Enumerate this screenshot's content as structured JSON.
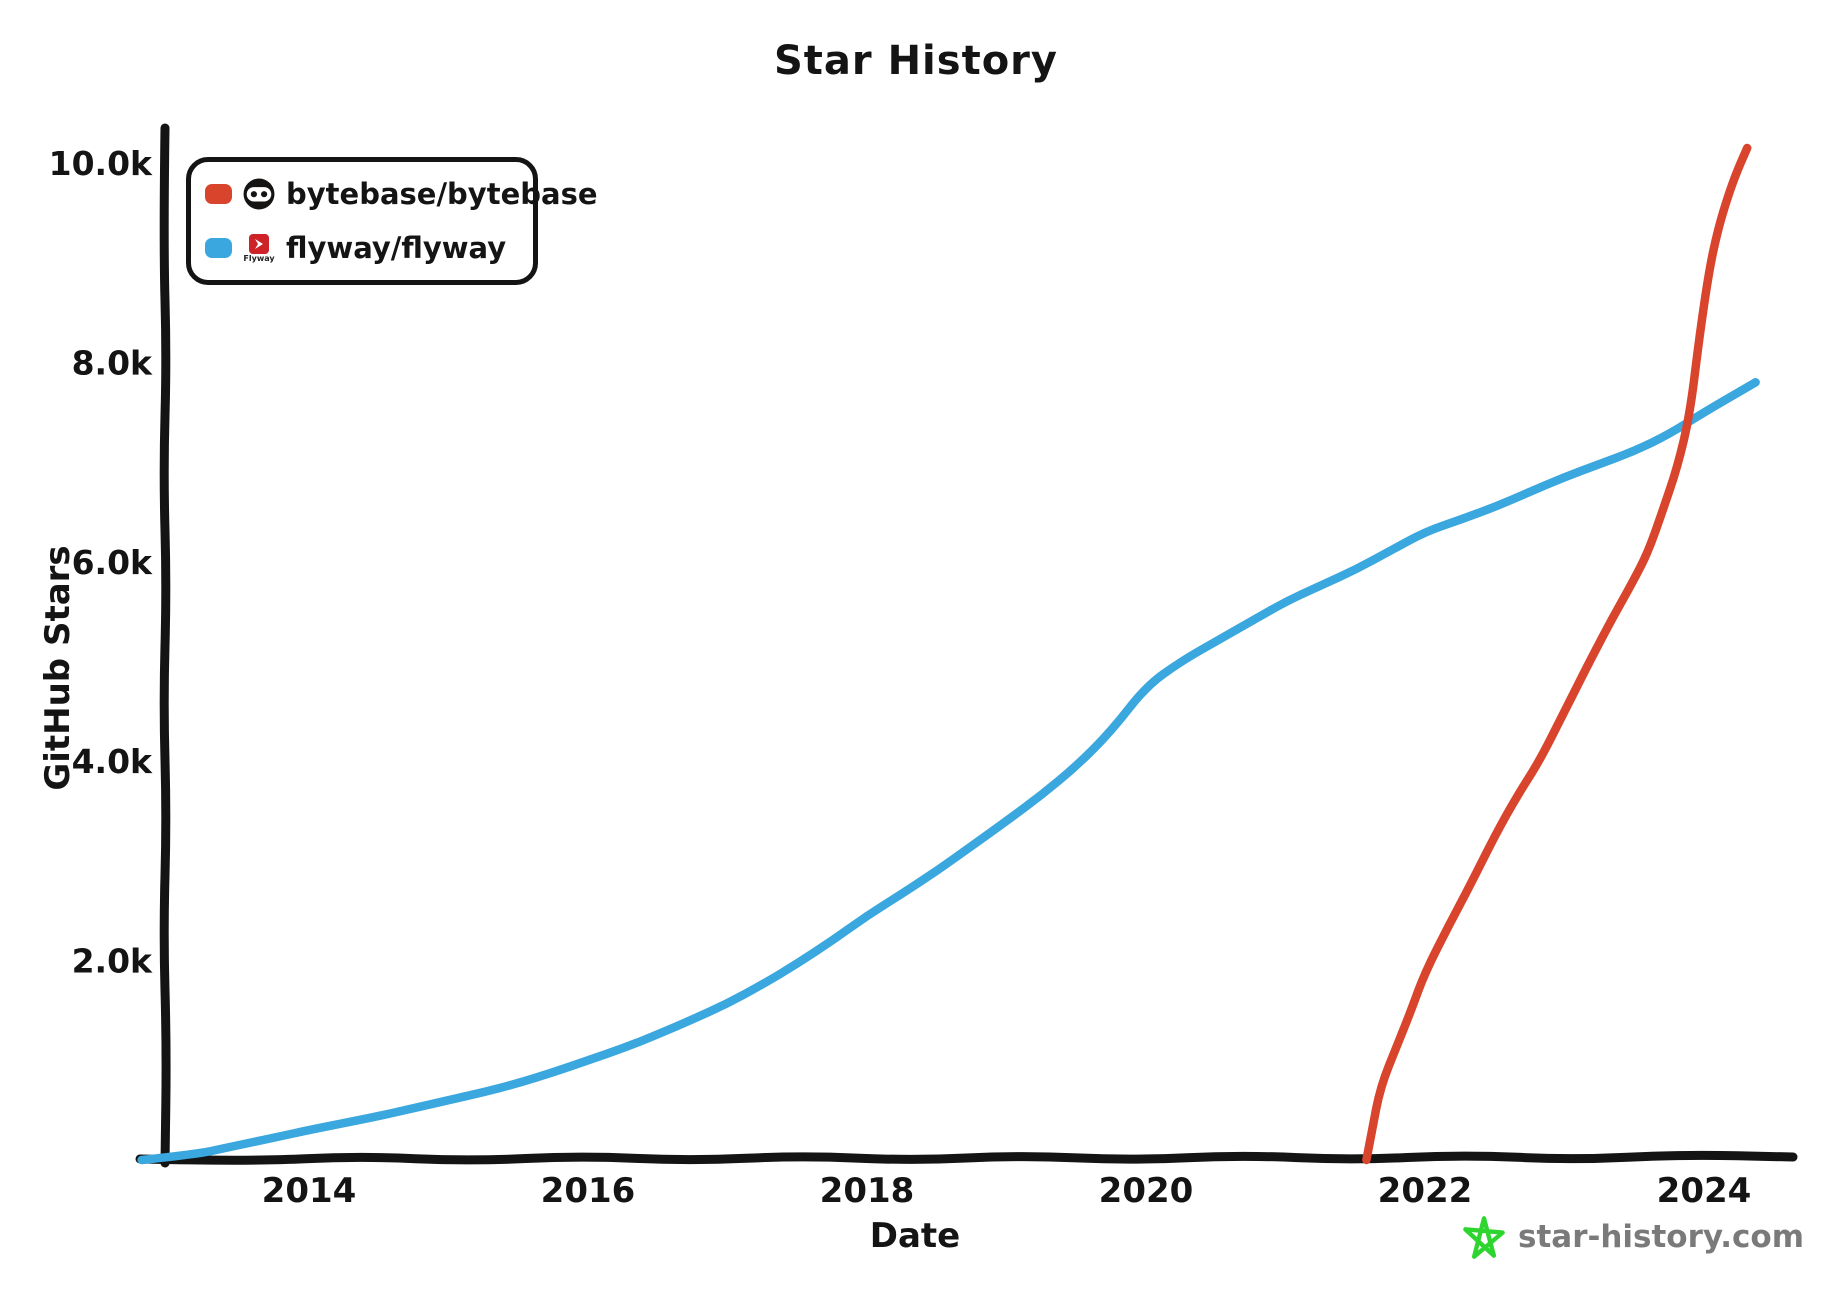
{
  "chart_data": {
    "type": "line",
    "title": "Star History",
    "xlabel": "Date",
    "ylabel": "GitHub Stars",
    "x_ticks": [
      2014,
      2016,
      2018,
      2020,
      2022,
      2024
    ],
    "y_ticks": [
      {
        "value": 2000,
        "label": "2.0k"
      },
      {
        "value": 4000,
        "label": "4.0k"
      },
      {
        "value": 6000,
        "label": "6.0k"
      },
      {
        "value": 8000,
        "label": "8.0k"
      },
      {
        "value": 10000,
        "label": "10.0k"
      }
    ],
    "xlim": [
      2012.8,
      2024.5
    ],
    "ylim": [
      0,
      10000
    ],
    "grid": false,
    "legend_position": "top-left",
    "series": [
      {
        "name": "bytebase/bytebase",
        "color": "#d9452c",
        "icon": "bytebase-logo-icon",
        "x": [
          2021.58,
          2021.62,
          2021.68,
          2021.8,
          2021.9,
          2022.0,
          2022.17,
          2022.34,
          2022.5,
          2022.66,
          2022.82,
          2023.0,
          2023.18,
          2023.33,
          2023.49,
          2023.6,
          2023.7,
          2023.81,
          2023.9,
          2023.97,
          2024.04,
          2024.1,
          2024.17,
          2024.24,
          2024.31
        ],
        "y": [
          0,
          300,
          730,
          1150,
          1500,
          1880,
          2350,
          2800,
          3250,
          3650,
          4000,
          4500,
          5000,
          5400,
          5800,
          6100,
          6500,
          6950,
          7490,
          8290,
          8950,
          9330,
          9660,
          9930,
          10150
        ]
      },
      {
        "name": "flyway/flyway",
        "color": "#3aa7de",
        "icon": "flyway-logo-icon",
        "x": [
          2012.8,
          2013.2,
          2013.4,
          2013.6,
          2013.8,
          2014.0,
          2014.25,
          2014.5,
          2014.75,
          2015.0,
          2015.25,
          2015.5,
          2015.75,
          2016.0,
          2016.25,
          2016.5,
          2016.75,
          2017.0,
          2017.25,
          2017.5,
          2017.75,
          2018.0,
          2018.25,
          2018.5,
          2018.75,
          2019.0,
          2019.25,
          2019.5,
          2019.75,
          2020.0,
          2020.25,
          2020.5,
          2020.75,
          2021.0,
          2021.25,
          2021.5,
          2021.75,
          2022.0,
          2022.25,
          2022.5,
          2022.75,
          2023.0,
          2023.25,
          2023.5,
          2023.75,
          2024.0,
          2024.37
        ],
        "y": [
          0,
          60,
          120,
          180,
          240,
          300,
          370,
          440,
          520,
          600,
          680,
          770,
          880,
          1000,
          1120,
          1260,
          1410,
          1570,
          1760,
          1970,
          2200,
          2450,
          2670,
          2900,
          3150,
          3400,
          3660,
          3950,
          4300,
          4750,
          5000,
          5200,
          5400,
          5600,
          5760,
          5920,
          6110,
          6300,
          6420,
          6550,
          6700,
          6850,
          6980,
          7110,
          7280,
          7500,
          7800
        ]
      }
    ]
  },
  "legend": {
    "flyway_logo_text": "Flyway"
  },
  "branding": {
    "site": "star-history.com",
    "star_icon": "green-star-icon",
    "star_color": "#2fd52f",
    "text_color": "#7a7a7a"
  },
  "colors": {
    "axis": "#141414",
    "background": "#ffffff"
  }
}
